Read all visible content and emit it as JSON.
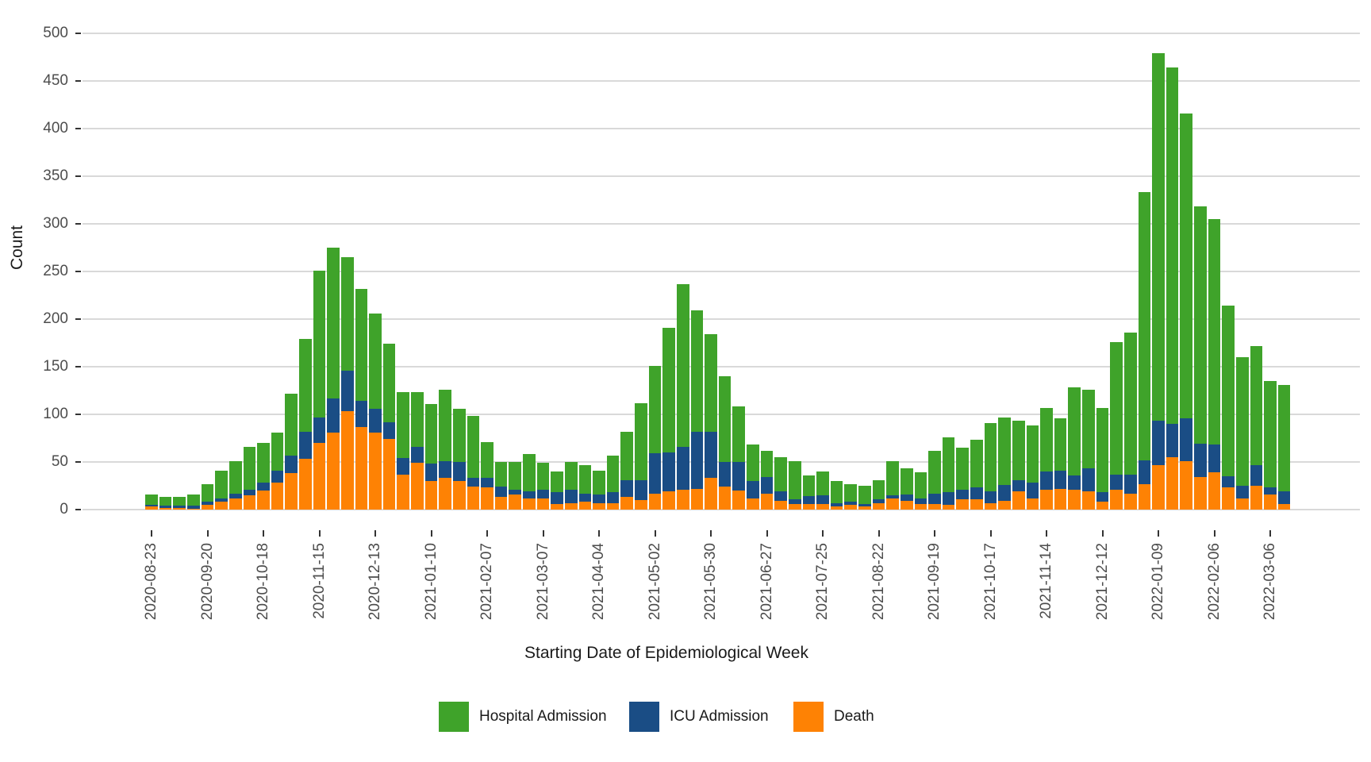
{
  "y_axis": {
    "title": "Count",
    "tick_labels": [
      "0",
      "50",
      "100",
      "150",
      "200",
      "250",
      "300",
      "350",
      "400",
      "450",
      "500"
    ]
  },
  "x_axis": {
    "title": "Starting Date of Epidemiological Week",
    "tick_labels": [
      "2020-08-23",
      "2020-09-20",
      "2020-10-18",
      "2020-11-15",
      "2020-12-13",
      "2021-01-10",
      "2021-02-07",
      "2021-03-07",
      "2021-04-04",
      "2021-05-02",
      "2021-05-30",
      "2021-06-27",
      "2021-07-25",
      "2021-08-22",
      "2021-09-19",
      "2021-10-17",
      "2021-11-14",
      "2021-12-12",
      "2022-01-09",
      "2022-02-06",
      "2022-03-06"
    ]
  },
  "legend": {
    "items": [
      {
        "label": "Hospital Admission",
        "color": "#3FA32A"
      },
      {
        "label": "ICU Admission",
        "color": "#1A4D85"
      },
      {
        "label": "Death",
        "color": "#FE8204"
      }
    ]
  },
  "chart_data": {
    "type": "bar",
    "stacked": true,
    "title": "",
    "xlabel": "Starting Date of Epidemiological Week",
    "ylabel": "Count",
    "ylim": [
      0,
      500
    ],
    "grid": "horizontal, every 50",
    "legend_position": "bottom",
    "x_tick_every_n_weeks": 4,
    "weeks": [
      "2020-08-23",
      "2020-08-30",
      "2020-09-06",
      "2020-09-13",
      "2020-09-20",
      "2020-09-27",
      "2020-10-04",
      "2020-10-11",
      "2020-10-18",
      "2020-10-25",
      "2020-11-01",
      "2020-11-08",
      "2020-11-15",
      "2020-11-22",
      "2020-11-29",
      "2020-12-06",
      "2020-12-13",
      "2020-12-20",
      "2020-12-27",
      "2021-01-03",
      "2021-01-10",
      "2021-01-17",
      "2021-01-24",
      "2021-01-31",
      "2021-02-07",
      "2021-02-14",
      "2021-02-21",
      "2021-02-28",
      "2021-03-07",
      "2021-03-14",
      "2021-03-21",
      "2021-03-28",
      "2021-04-04",
      "2021-04-11",
      "2021-04-18",
      "2021-04-25",
      "2021-05-02",
      "2021-05-09",
      "2021-05-16",
      "2021-05-23",
      "2021-05-30",
      "2021-06-06",
      "2021-06-13",
      "2021-06-20",
      "2021-06-27",
      "2021-07-04",
      "2021-07-11",
      "2021-07-18",
      "2021-07-25",
      "2021-08-01",
      "2021-08-08",
      "2021-08-15",
      "2021-08-22",
      "2021-08-29",
      "2021-09-05",
      "2021-09-12",
      "2021-09-19",
      "2021-09-26",
      "2021-10-03",
      "2021-10-10",
      "2021-10-17",
      "2021-10-24",
      "2021-10-31",
      "2021-11-07",
      "2021-11-14",
      "2021-11-21",
      "2021-11-28",
      "2021-12-05",
      "2021-12-12",
      "2021-12-19",
      "2021-12-26",
      "2022-01-02",
      "2022-01-09",
      "2022-01-16",
      "2022-01-23",
      "2022-01-30",
      "2022-02-06",
      "2022-02-13",
      "2022-02-20",
      "2022-02-27",
      "2022-03-06",
      "2022-03-13"
    ],
    "series": [
      {
        "name": "Death",
        "color": "#FE8204",
        "values": [
          3,
          2,
          2,
          1,
          5,
          8,
          12,
          15,
          20,
          28,
          38,
          53,
          70,
          81,
          103,
          87,
          81,
          74,
          37,
          49,
          30,
          33,
          30,
          24,
          23,
          13,
          16,
          12,
          12,
          6,
          7,
          8,
          7,
          7,
          13,
          10,
          17,
          19,
          21,
          22,
          33,
          24,
          20,
          12,
          17,
          9,
          6,
          6,
          6,
          3,
          5,
          3,
          7,
          12,
          9,
          6,
          6,
          5,
          11,
          11,
          7,
          9,
          19,
          12,
          21,
          22,
          21,
          19,
          8,
          21,
          17,
          27,
          47,
          55,
          51,
          34,
          39,
          23,
          12,
          25,
          16,
          6
        ]
      },
      {
        "name": "ICU Admission",
        "color": "#1A4D85",
        "values": [
          2,
          2,
          2,
          3,
          3,
          4,
          5,
          6,
          8,
          13,
          19,
          29,
          27,
          36,
          43,
          27,
          25,
          18,
          17,
          17,
          18,
          18,
          20,
          9,
          10,
          11,
          5,
          7,
          9,
          12,
          14,
          9,
          9,
          11,
          18,
          21,
          42,
          41,
          45,
          60,
          49,
          26,
          30,
          18,
          17,
          10,
          5,
          8,
          9,
          4,
          3,
          3,
          4,
          3,
          7,
          6,
          11,
          13,
          10,
          12,
          12,
          17,
          12,
          16,
          19,
          19,
          15,
          24,
          10,
          16,
          20,
          25,
          46,
          35,
          45,
          35,
          29,
          12,
          13,
          22,
          7,
          13
        ]
      },
      {
        "name": "Hospital Admission",
        "color": "#3FA32A",
        "values": [
          11,
          9,
          9,
          12,
          19,
          29,
          34,
          45,
          42,
          40,
          65,
          97,
          154,
          158,
          119,
          118,
          100,
          82,
          69,
          57,
          63,
          75,
          56,
          65,
          38,
          26,
          29,
          39,
          28,
          22,
          29,
          30,
          25,
          39,
          51,
          81,
          92,
          131,
          171,
          127,
          102,
          90,
          58,
          38,
          28,
          36,
          40,
          22,
          25,
          23,
          19,
          19,
          20,
          36,
          27,
          27,
          45,
          58,
          44,
          50,
          72,
          71,
          62,
          60,
          67,
          55,
          92,
          83,
          89,
          139,
          149,
          281,
          386,
          374,
          320,
          249,
          237,
          179,
          135,
          125,
          112,
          112
        ]
      }
    ]
  }
}
